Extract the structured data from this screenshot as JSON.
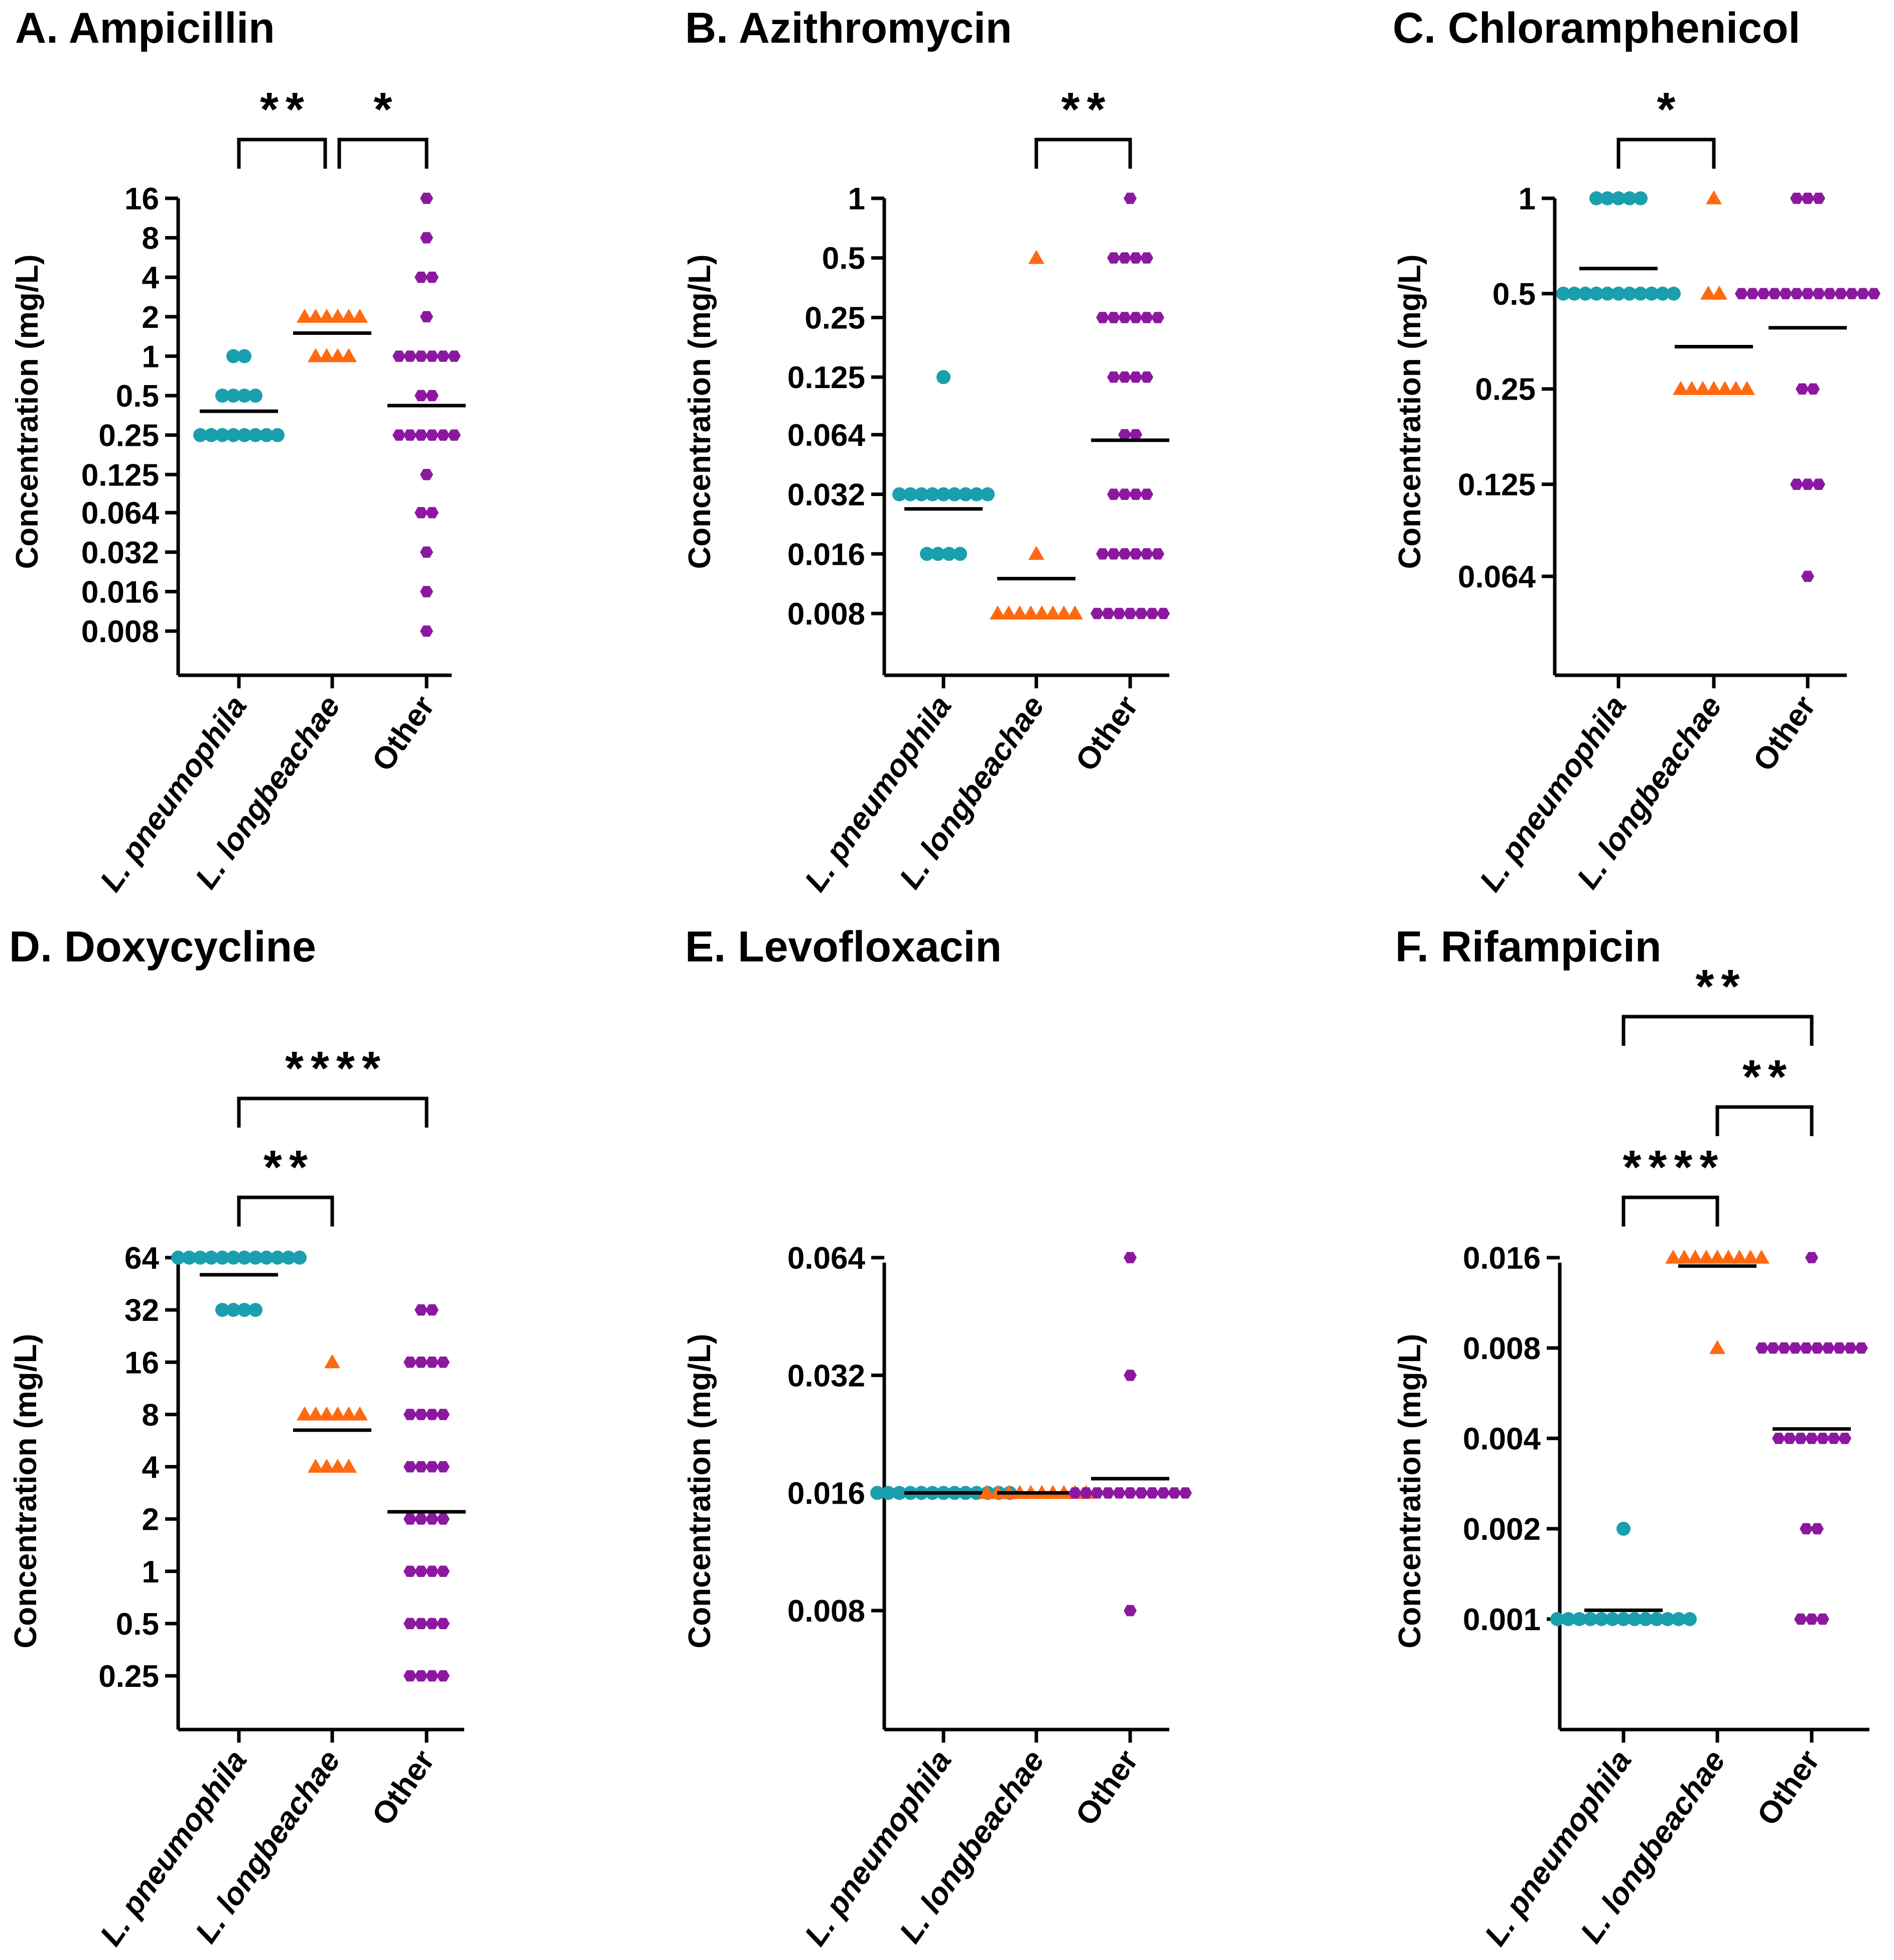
{
  "colors": {
    "L. pneumophila": "#1a9fae",
    "L. longbeachae": "#ff6a10",
    "Other": "#8c18a0"
  },
  "chart_data": [
    {
      "type": "scatter",
      "title": "A. Ampicillin",
      "ylabel": "Concentration (mg/L)",
      "categories": [
        "L. pneumophila",
        "L. longbeachae",
        "Other"
      ],
      "yticks": [
        "16",
        "8",
        "4",
        "2",
        "1",
        "0.5",
        "0.25",
        "0.125",
        "0.064",
        "0.032",
        "0.016",
        "0.008"
      ],
      "tick_values": [
        16,
        8,
        4,
        2,
        1,
        0.5,
        0.25,
        0.125,
        0.064,
        0.032,
        0.016,
        0.008
      ],
      "series": [
        {
          "name": "L. pneumophila",
          "marker": "circle",
          "values": [
            {
              "y": 1,
              "n": 2
            },
            {
              "y": 0.5,
              "n": 4
            },
            {
              "y": 0.25,
              "n": 8
            }
          ],
          "mean": 0.38
        },
        {
          "name": "L. longbeachae",
          "marker": "triangle",
          "values": [
            {
              "y": 2,
              "n": 6
            },
            {
              "y": 1,
              "n": 4
            }
          ],
          "mean": 1.5
        },
        {
          "name": "Other",
          "marker": "hexagon",
          "values": [
            {
              "y": 16,
              "n": 1
            },
            {
              "y": 8,
              "n": 1
            },
            {
              "y": 4,
              "n": 2
            },
            {
              "y": 2,
              "n": 1
            },
            {
              "y": 1,
              "n": 6
            },
            {
              "y": 0.5,
              "n": 2
            },
            {
              "y": 0.25,
              "n": 6
            },
            {
              "y": 0.125,
              "n": 1
            },
            {
              "y": 0.064,
              "n": 2
            },
            {
              "y": 0.032,
              "n": 1
            },
            {
              "y": 0.016,
              "n": 1
            },
            {
              "y": 0.008,
              "n": 1
            }
          ],
          "mean": 0.42
        }
      ],
      "significance": [
        {
          "from": 0,
          "to": 1,
          "label": "**"
        },
        {
          "from": 1,
          "to": 2,
          "label": "*"
        }
      ]
    },
    {
      "type": "scatter",
      "title": "B. Azithromycin",
      "ylabel": "Concentration (mg/L)",
      "categories": [
        "L. pneumophila",
        "L. longbeachae",
        "Other"
      ],
      "yticks": [
        "1",
        "0.5",
        "0.25",
        "0.125",
        "0.064",
        "0.032",
        "0.016",
        "0.008"
      ],
      "tick_values": [
        1,
        0.5,
        0.25,
        0.125,
        0.064,
        0.032,
        0.016,
        0.008
      ],
      "series": [
        {
          "name": "L. pneumophila",
          "marker": "circle",
          "values": [
            {
              "y": 0.125,
              "n": 1
            },
            {
              "y": 0.032,
              "n": 9
            },
            {
              "y": 0.016,
              "n": 4
            }
          ],
          "mean": 0.027
        },
        {
          "name": "L. longbeachae",
          "marker": "triangle",
          "values": [
            {
              "y": 0.5,
              "n": 1
            },
            {
              "y": 0.016,
              "n": 1
            },
            {
              "y": 0.008,
              "n": 8
            }
          ],
          "mean": 0.012
        },
        {
          "name": "Other",
          "marker": "hexagon",
          "values": [
            {
              "y": 1,
              "n": 1
            },
            {
              "y": 0.5,
              "n": 4
            },
            {
              "y": 0.25,
              "n": 6
            },
            {
              "y": 0.125,
              "n": 4
            },
            {
              "y": 0.064,
              "n": 2
            },
            {
              "y": 0.032,
              "n": 4
            },
            {
              "y": 0.016,
              "n": 6
            },
            {
              "y": 0.008,
              "n": 7
            }
          ],
          "mean": 0.06
        }
      ],
      "significance": [
        {
          "from": 1,
          "to": 2,
          "label": "**"
        }
      ]
    },
    {
      "type": "scatter",
      "title": "C. Chloramphenicol",
      "ylabel": "Concentration (mg/L)",
      "categories": [
        "L. pneumophila",
        "L. longbeachae",
        "Other"
      ],
      "yticks": [
        "1",
        "0.5",
        "0.25",
        "0.125",
        "0.064"
      ],
      "tick_values": [
        1,
        0.5,
        0.25,
        0.125,
        0.064
      ],
      "series": [
        {
          "name": "L. pneumophila",
          "marker": "circle",
          "values": [
            {
              "y": 1,
              "n": 5
            },
            {
              "y": 0.5,
              "n": 11
            }
          ],
          "mean": 0.6
        },
        {
          "name": "L. longbeachae",
          "marker": "triangle",
          "values": [
            {
              "y": 1,
              "n": 1
            },
            {
              "y": 0.5,
              "n": 2
            },
            {
              "y": 0.25,
              "n": 7
            }
          ],
          "mean": 0.34
        },
        {
          "name": "Other",
          "marker": "hexagon",
          "values": [
            {
              "y": 1,
              "n": 3
            },
            {
              "y": 0.5,
              "n": 13
            },
            {
              "y": 0.25,
              "n": 2
            },
            {
              "y": 0.125,
              "n": 3
            },
            {
              "y": 0.064,
              "n": 1
            }
          ],
          "mean": 0.39
        }
      ],
      "significance": [
        {
          "from": 0,
          "to": 1,
          "label": "*"
        }
      ]
    },
    {
      "type": "scatter",
      "title": "D. Doxycycline",
      "ylabel": "Concentration (mg/L)",
      "categories": [
        "L. pneumophila",
        "L. longbeachae",
        "Other"
      ],
      "yticks": [
        "64",
        "32",
        "16",
        "8",
        "4",
        "2",
        "1",
        "0.5",
        "0.25"
      ],
      "tick_values": [
        64,
        32,
        16,
        8,
        4,
        2,
        1,
        0.5,
        0.25
      ],
      "series": [
        {
          "name": "L. pneumophila",
          "marker": "circle",
          "values": [
            {
              "y": 64,
              "n": 12
            },
            {
              "y": 32,
              "n": 4
            }
          ],
          "mean": 51
        },
        {
          "name": "L. longbeachae",
          "marker": "triangle",
          "values": [
            {
              "y": 16,
              "n": 1
            },
            {
              "y": 8,
              "n": 6
            },
            {
              "y": 4,
              "n": 4
            }
          ],
          "mean": 6.5
        },
        {
          "name": "Other",
          "marker": "hexagon",
          "values": [
            {
              "y": 32,
              "n": 2
            },
            {
              "y": 16,
              "n": 4
            },
            {
              "y": 8,
              "n": 4
            },
            {
              "y": 4,
              "n": 4
            },
            {
              "y": 2,
              "n": 4
            },
            {
              "y": 1,
              "n": 4
            },
            {
              "y": 0.5,
              "n": 4
            },
            {
              "y": 0.25,
              "n": 4
            }
          ],
          "mean": 2.2
        }
      ],
      "significance": [
        {
          "from": 0,
          "to": 1,
          "label": "**"
        },
        {
          "from": 0,
          "to": 2,
          "label": "****"
        }
      ]
    },
    {
      "type": "scatter",
      "title": "E. Levofloxacin",
      "ylabel": "Concentration (mg/L)",
      "categories": [
        "L. pneumophila",
        "L. longbeachae",
        "Other"
      ],
      "yticks": [
        "0.064",
        "0.032",
        "0.016",
        "0.008"
      ],
      "tick_values": [
        0.064,
        0.032,
        0.016,
        0.008
      ],
      "series": [
        {
          "name": "L. pneumophila",
          "marker": "circle",
          "values": [
            {
              "y": 0.016,
              "n": 13
            }
          ],
          "mean": 0.016
        },
        {
          "name": "L. longbeachae",
          "marker": "triangle",
          "values": [
            {
              "y": 0.016,
              "n": 10
            }
          ],
          "mean": 0.016
        },
        {
          "name": "Other",
          "marker": "hexagon",
          "values": [
            {
              "y": 0.064,
              "n": 1
            },
            {
              "y": 0.032,
              "n": 1
            },
            {
              "y": 0.016,
              "n": 11
            },
            {
              "y": 0.008,
              "n": 1
            }
          ],
          "mean": 0.0174
        }
      ],
      "significance": []
    },
    {
      "type": "scatter",
      "title": "F. Rifampicin",
      "ylabel": "Concentration (mg/L)",
      "categories": [
        "L. pneumophila",
        "L. longbeachae",
        "Other"
      ],
      "yticks": [
        "0.016",
        "0.008",
        "0.004",
        "0.002",
        "0.001"
      ],
      "tick_values": [
        0.016,
        0.008,
        0.004,
        0.002,
        0.001
      ],
      "series": [
        {
          "name": "L. pneumophila",
          "marker": "circle",
          "values": [
            {
              "y": 0.002,
              "n": 1
            },
            {
              "y": 0.001,
              "n": 13
            }
          ],
          "mean": 0.00107
        },
        {
          "name": "L. longbeachae",
          "marker": "triangle",
          "values": [
            {
              "y": 0.016,
              "n": 9
            },
            {
              "y": 0.008,
              "n": 1
            }
          ],
          "mean": 0.015
        },
        {
          "name": "Other",
          "marker": "hexagon",
          "values": [
            {
              "y": 0.016,
              "n": 1
            },
            {
              "y": 0.008,
              "n": 10
            },
            {
              "y": 0.004,
              "n": 7
            },
            {
              "y": 0.002,
              "n": 2
            },
            {
              "y": 0.001,
              "n": 3
            }
          ],
          "mean": 0.0043
        }
      ],
      "significance": [
        {
          "from": 0,
          "to": 1,
          "label": "****"
        },
        {
          "from": 1,
          "to": 2,
          "label": "**"
        },
        {
          "from": 0,
          "to": 2,
          "label": "**"
        }
      ]
    }
  ]
}
